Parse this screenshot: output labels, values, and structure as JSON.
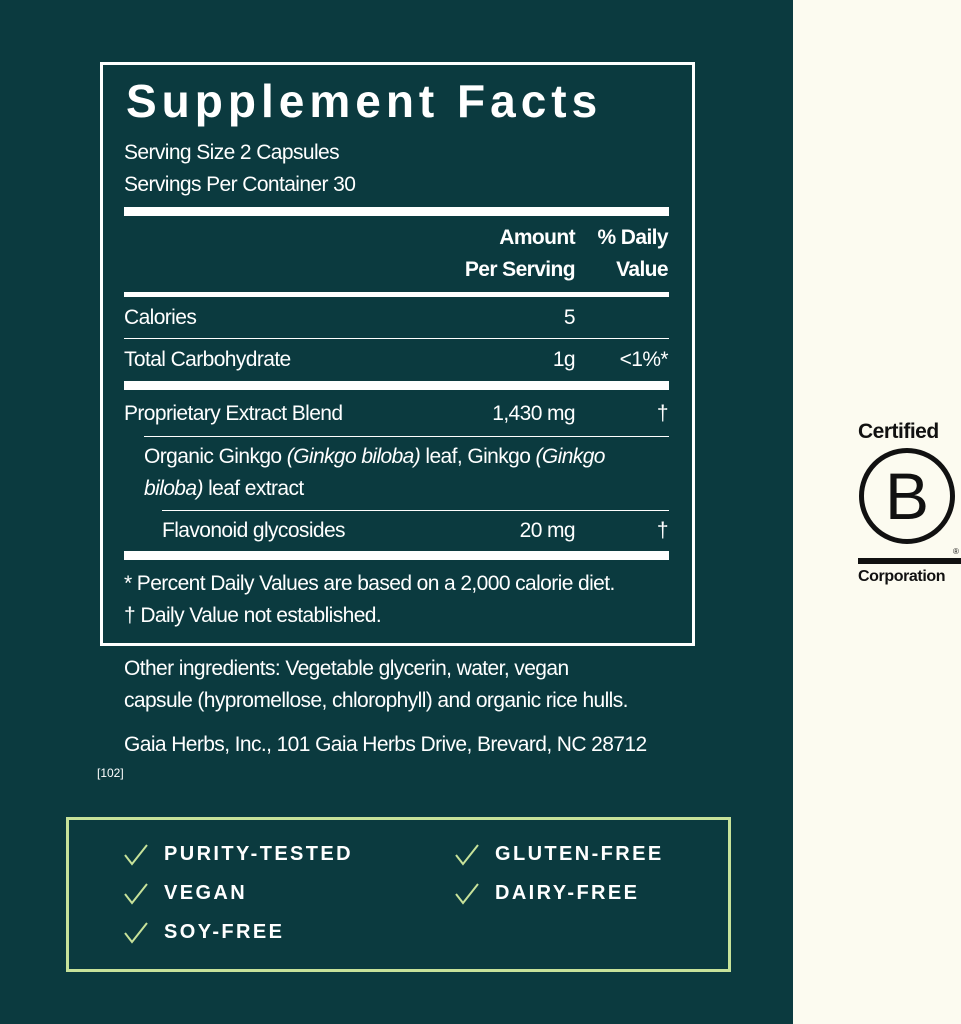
{
  "facts": {
    "title": "Supplement Facts",
    "serving_size": "Serving Size 2 Capsules",
    "servings_per_container": "Servings Per Container 30",
    "col_amount_1": "Amount",
    "col_amount_2": "Per Serving",
    "col_dv_1": "% Daily",
    "col_dv_2": "Value",
    "rows": [
      {
        "name": "Calories",
        "amount": "5",
        "dv": ""
      },
      {
        "name": "Total Carbohydrate",
        "amount": "1g",
        "dv": "<1%*"
      },
      {
        "name": "Proprietary Extract Blend",
        "amount": "1,430 mg",
        "dv": "†"
      },
      {
        "name": "Flavonoid glycosides",
        "amount": "20 mg",
        "dv": "†"
      }
    ],
    "blend_desc_1a": "Organic Ginkgo ",
    "blend_desc_1b": "(Ginkgo biloba)",
    "blend_desc_1c": " leaf, Ginkgo ",
    "blend_desc_1d": "(Ginkgo",
    "blend_desc_2a": "biloba)",
    "blend_desc_2b": " leaf extract",
    "footnote_1": "*  Percent Daily Values are based on a 2,000 calorie diet.",
    "footnote_2": "†  Daily Value not established."
  },
  "other_ingredients_1": "Other ingredients: Vegetable glycerin, water, vegan",
  "other_ingredients_2": "capsule (hypromellose, chlorophyll) and organic rice hulls.",
  "address": "Gaia Herbs, Inc., 101 Gaia Herbs Drive, Brevard, NC 28712",
  "code": "[102]",
  "badges": [
    "PURITY-TESTED",
    "VEGAN",
    "SOY-FREE",
    "GLUTEN-FREE",
    "DAIRY-FREE"
  ],
  "bcorp": {
    "top": "Certified",
    "letter": "B",
    "bottom": "Corporation",
    "registered": "®"
  },
  "colors": {
    "panel": "#0b3a3f",
    "check": "#c7e29a",
    "background": "#fcfbf0"
  }
}
